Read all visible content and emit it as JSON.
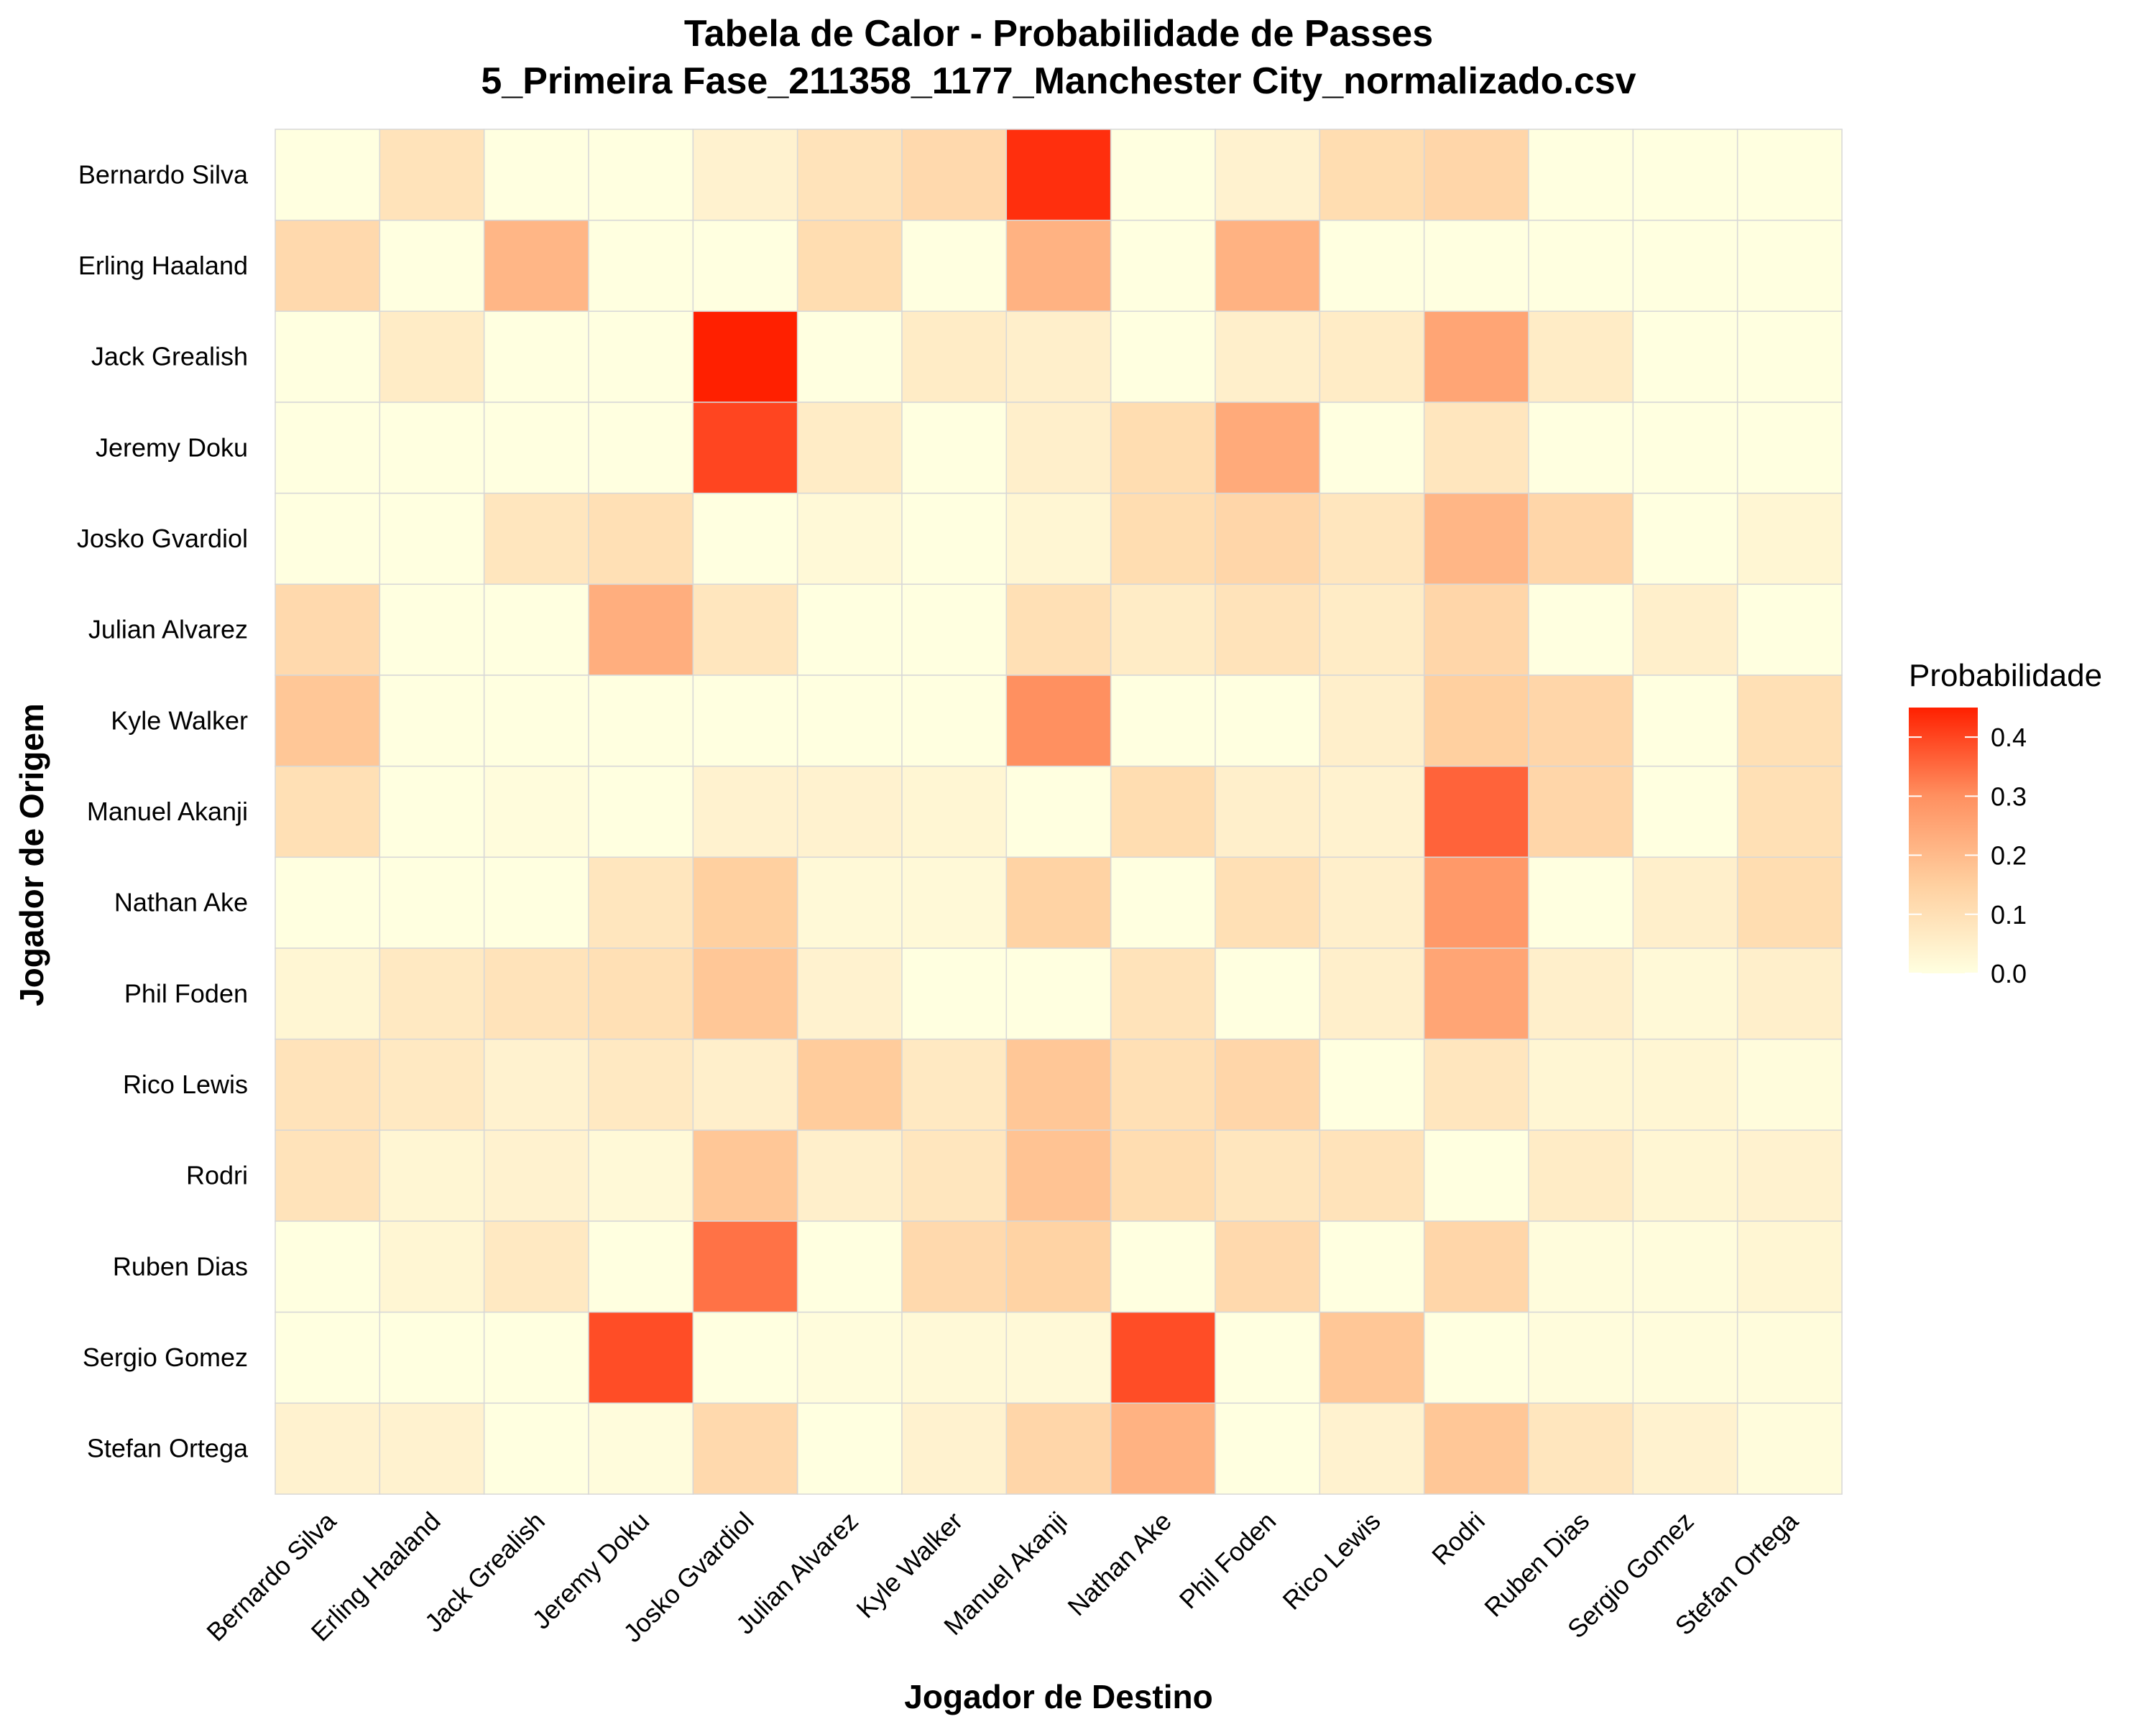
{
  "chart_data": {
    "type": "heatmap",
    "title": "Tabela de Calor - Probabilidade de Passes",
    "subtitle": "5_Primeira Fase_211358_1177_Manchester City_normalizado.csv",
    "xlabel": "Jogador de Destino",
    "ylabel": "Jogador de Origem",
    "x_categories": [
      "Bernardo Silva",
      "Erling Haaland",
      "Jack Grealish",
      "Jeremy Doku",
      "Josko Gvardiol",
      "Julian Alvarez",
      "Kyle Walker",
      "Manuel Akanji",
      "Nathan Ake",
      "Phil Foden",
      "Rico Lewis",
      "Rodri",
      "Ruben Dias",
      "Sergio Gomez",
      "Stefan Ortega"
    ],
    "y_categories": [
      "Bernardo Silva",
      "Erling Haaland",
      "Jack Grealish",
      "Jeremy Doku",
      "Josko Gvardiol",
      "Julian Alvarez",
      "Kyle Walker",
      "Manuel Akanji",
      "Nathan Ake",
      "Phil Foden",
      "Rico Lewis",
      "Rodri",
      "Ruben Dias",
      "Sergio Gomez",
      "Stefan Ortega"
    ],
    "values": [
      [
        0.0,
        0.09,
        0.0,
        0.0,
        0.04,
        0.09,
        0.12,
        0.43,
        0.0,
        0.04,
        0.11,
        0.13,
        0.0,
        0.0,
        0.0
      ],
      [
        0.12,
        0.0,
        0.21,
        0.0,
        0.0,
        0.11,
        0.0,
        0.22,
        0.0,
        0.22,
        0.0,
        0.0,
        0.0,
        0.0,
        0.0
      ],
      [
        0.0,
        0.06,
        0.0,
        0.0,
        0.45,
        0.0,
        0.06,
        0.05,
        0.0,
        0.05,
        0.06,
        0.25,
        0.06,
        0.0,
        0.0
      ],
      [
        0.0,
        0.0,
        0.0,
        0.0,
        0.4,
        0.06,
        0.0,
        0.05,
        0.11,
        0.24,
        0.0,
        0.08,
        0.0,
        0.0,
        0.0
      ],
      [
        0.0,
        0.0,
        0.08,
        0.1,
        0.0,
        0.02,
        0.0,
        0.03,
        0.11,
        0.13,
        0.08,
        0.21,
        0.13,
        0.0,
        0.03
      ],
      [
        0.12,
        0.0,
        0.0,
        0.23,
        0.08,
        0.0,
        0.0,
        0.1,
        0.06,
        0.09,
        0.06,
        0.13,
        0.0,
        0.05,
        0.0
      ],
      [
        0.17,
        0.0,
        0.0,
        0.0,
        0.0,
        0.0,
        0.0,
        0.3,
        0.0,
        0.0,
        0.05,
        0.15,
        0.13,
        0.0,
        0.1
      ],
      [
        0.1,
        0.0,
        0.01,
        0.0,
        0.04,
        0.04,
        0.03,
        0.0,
        0.11,
        0.05,
        0.04,
        0.36,
        0.13,
        0.0,
        0.1
      ],
      [
        0.0,
        0.0,
        0.0,
        0.08,
        0.15,
        0.02,
        0.02,
        0.14,
        0.0,
        0.1,
        0.05,
        0.28,
        0.0,
        0.05,
        0.11
      ],
      [
        0.03,
        0.07,
        0.09,
        0.1,
        0.17,
        0.04,
        0.0,
        0.0,
        0.09,
        0.0,
        0.05,
        0.25,
        0.05,
        0.02,
        0.05
      ],
      [
        0.09,
        0.07,
        0.04,
        0.07,
        0.05,
        0.16,
        0.07,
        0.17,
        0.1,
        0.13,
        0.0,
        0.08,
        0.03,
        0.03,
        0.01
      ],
      [
        0.09,
        0.03,
        0.04,
        0.02,
        0.17,
        0.05,
        0.08,
        0.18,
        0.11,
        0.08,
        0.09,
        0.0,
        0.06,
        0.03,
        0.04
      ],
      [
        0.0,
        0.03,
        0.07,
        0.0,
        0.34,
        0.0,
        0.12,
        0.14,
        0.0,
        0.12,
        0.0,
        0.13,
        0.01,
        0.01,
        0.03
      ],
      [
        0.0,
        0.0,
        0.0,
        0.39,
        0.0,
        0.01,
        0.02,
        0.02,
        0.39,
        0.0,
        0.17,
        0.0,
        0.01,
        0.01,
        0.01
      ],
      [
        0.04,
        0.04,
        0.0,
        0.01,
        0.12,
        0.0,
        0.04,
        0.13,
        0.22,
        0.0,
        0.04,
        0.17,
        0.08,
        0.04,
        0.01
      ]
    ],
    "legend": {
      "title": "Probabilidade",
      "ticks": [
        "0.0",
        "0.1",
        "0.2",
        "0.3",
        "0.4"
      ],
      "min": 0.0,
      "max": 0.45,
      "colors": [
        "#ffffe0",
        "#ffd0a0",
        "#ff9060",
        "#ff2000"
      ],
      "placement": "right"
    },
    "grid": false
  }
}
